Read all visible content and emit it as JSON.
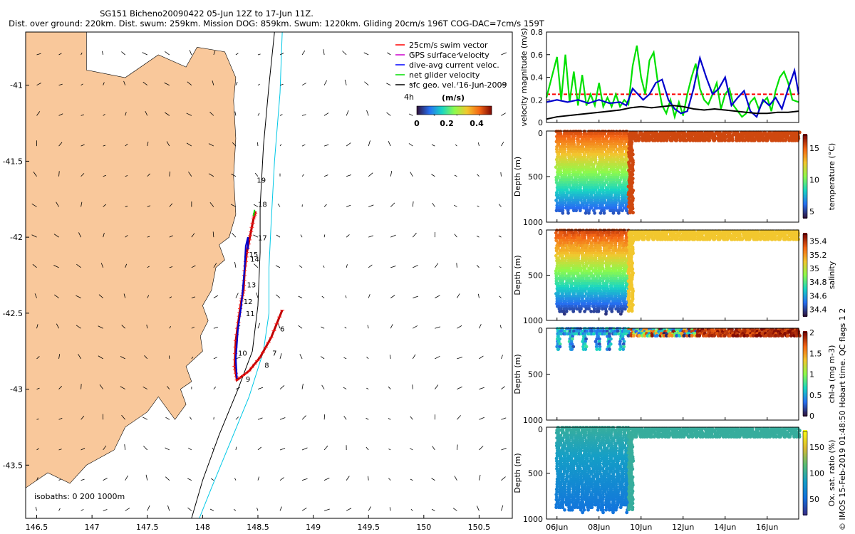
{
  "header": {
    "title": "SG151 Bicheno20090422 05-Jun 12Z to 17-Jun 11Z.",
    "subtitle": "Dist. over ground: 220km. Dist. swum: 259km. Mission DOG: 859km. Swum: 1220km. Gliding 20cm/s 196T COG-DAC=7cm/s 159T"
  },
  "credit": "© IMOS 15-Feb-2019 01:48:50 Hobart time. QC flags 1  2",
  "colors": {
    "land": "#f9c89b",
    "isobath_200": "#000000",
    "isobath_1000": "#00c8e6",
    "track": "#c00000",
    "dac": "#0000cc",
    "net": "#00e000",
    "gps": "#cc00cc"
  },
  "chart_data": [
    {
      "type": "map",
      "xlim": [
        146.4,
        150.8
      ],
      "ylim": [
        -43.85,
        -40.65
      ],
      "x_ticks": [
        "146.5",
        "147",
        "147.5",
        "148",
        "148.5",
        "149",
        "149.5",
        "150",
        "150.5"
      ],
      "y_ticks": [
        "-41",
        "-41.5",
        "-42",
        "-42.5",
        "-43",
        "-43.5"
      ],
      "isobaths_label": "isobaths: 0   200   1000m",
      "legend": {
        "placement": "top-right",
        "entries": [
          "25cm/s swim vector",
          "GPS surface velocity",
          "dive-avg current veloc.",
          "net glider velocity",
          "sfc geo. vel. 16-Jun-2009"
        ],
        "colors": [
          "#ff0000",
          "#cc00cc",
          "#0000ff",
          "#00dd00",
          "#000000"
        ]
      },
      "scale_text": "4h",
      "colorbar": {
        "title": "(m/s)",
        "ticks": [
          "0",
          "0.2",
          "0.4"
        ],
        "range": [
          0,
          0.5
        ]
      },
      "day_labels": [
        {
          "label": "6",
          "lon": 148.7,
          "lat": -42.62
        },
        {
          "label": "7",
          "lon": 148.63,
          "lat": -42.78
        },
        {
          "label": "8",
          "lon": 148.56,
          "lat": -42.86
        },
        {
          "label": "9",
          "lon": 148.39,
          "lat": -42.95
        },
        {
          "label": "10",
          "lon": 148.32,
          "lat": -42.78
        },
        {
          "label": "11",
          "lon": 148.39,
          "lat": -42.52
        },
        {
          "label": "12",
          "lon": 148.37,
          "lat": -42.44
        },
        {
          "label": "13",
          "lon": 148.4,
          "lat": -42.33
        },
        {
          "label": "14",
          "lon": 148.43,
          "lat": -42.16
        },
        {
          "label": "15",
          "lon": 148.42,
          "lat": -42.13
        },
        {
          "label": "17",
          "lon": 148.5,
          "lat": -42.02
        },
        {
          "label": "18",
          "lon": 148.5,
          "lat": -41.8
        },
        {
          "label": "19",
          "lon": 148.49,
          "lat": -41.64
        }
      ],
      "track": [
        [
          148.72,
          -42.48
        ],
        [
          148.62,
          -42.66
        ],
        [
          148.52,
          -42.79
        ],
        [
          148.42,
          -42.88
        ],
        [
          148.31,
          -42.94
        ],
        [
          148.29,
          -42.85
        ],
        [
          148.3,
          -42.68
        ],
        [
          148.33,
          -42.52
        ],
        [
          148.35,
          -42.42
        ],
        [
          148.37,
          -42.35
        ],
        [
          148.38,
          -42.22
        ],
        [
          148.4,
          -42.1
        ],
        [
          148.43,
          -41.99
        ],
        [
          148.46,
          -41.88
        ],
        [
          148.48,
          -41.83
        ]
      ],
      "dac_track": [
        [
          148.31,
          -42.93
        ],
        [
          148.3,
          -42.8
        ],
        [
          148.32,
          -42.6
        ],
        [
          148.35,
          -42.45
        ],
        [
          148.36,
          -42.37
        ],
        [
          148.38,
          -42.2
        ],
        [
          148.39,
          -42.06
        ],
        [
          148.41,
          -42.0
        ],
        [
          148.41,
          -42.08
        ]
      ]
    },
    {
      "type": "line",
      "ylabel": "velocity magnitude (m/s)",
      "ylim": [
        0,
        0.8
      ],
      "y_ticks": [
        "0",
        "0.2",
        "0.4",
        "0.6",
        "0.8"
      ],
      "x_days": [
        5.5,
        17.5
      ],
      "series": [
        {
          "color": "#00e000",
          "x": [
            5.5,
            6.0,
            6.2,
            6.4,
            6.6,
            6.8,
            7.0,
            7.2,
            7.4,
            7.6,
            7.8,
            8.0,
            8.2,
            8.4,
            8.6,
            8.8,
            9.0,
            9.2,
            9.4,
            9.6,
            9.8,
            10.0,
            10.2,
            10.4,
            10.6,
            10.8,
            11.0,
            11.2,
            11.4,
            11.6,
            11.8,
            12.0,
            12.2,
            12.4,
            12.6,
            12.8,
            13.0,
            13.2,
            13.4,
            13.6,
            13.8,
            14.0,
            14.2,
            14.4,
            14.6,
            14.8,
            15.0,
            15.2,
            15.4,
            15.6,
            15.8,
            16.0,
            16.2,
            16.4,
            16.6,
            16.8,
            17.0,
            17.2,
            17.5
          ],
          "y": [
            0.22,
            0.58,
            0.2,
            0.6,
            0.18,
            0.45,
            0.15,
            0.42,
            0.15,
            0.25,
            0.15,
            0.35,
            0.14,
            0.22,
            0.14,
            0.25,
            0.14,
            0.2,
            0.16,
            0.5,
            0.68,
            0.4,
            0.25,
            0.55,
            0.62,
            0.35,
            0.15,
            0.08,
            0.2,
            0.05,
            0.18,
            0.06,
            0.25,
            0.4,
            0.52,
            0.3,
            0.2,
            0.16,
            0.25,
            0.35,
            0.12,
            0.25,
            0.3,
            0.15,
            0.1,
            0.05,
            0.08,
            0.18,
            0.22,
            0.12,
            0.18,
            0.22,
            0.1,
            0.28,
            0.4,
            0.45,
            0.35,
            0.2,
            0.18
          ]
        },
        {
          "color": "#0000cc",
          "x": [
            5.5,
            6.0,
            6.5,
            7.0,
            7.5,
            8.0,
            8.5,
            9.0,
            9.3,
            9.6,
            9.9,
            10.1,
            10.4,
            10.7,
            11.0,
            11.3,
            11.6,
            11.9,
            12.2,
            12.5,
            12.8,
            13.1,
            13.4,
            13.7,
            14.0,
            14.3,
            14.6,
            14.9,
            15.2,
            15.5,
            15.8,
            16.1,
            16.4,
            16.7,
            17.0,
            17.3,
            17.5
          ],
          "y": [
            0.18,
            0.2,
            0.18,
            0.2,
            0.17,
            0.2,
            0.17,
            0.18,
            0.15,
            0.3,
            0.24,
            0.2,
            0.25,
            0.35,
            0.38,
            0.2,
            0.12,
            0.08,
            0.1,
            0.3,
            0.57,
            0.4,
            0.25,
            0.3,
            0.4,
            0.15,
            0.22,
            0.28,
            0.1,
            0.05,
            0.2,
            0.15,
            0.22,
            0.12,
            0.3,
            0.46,
            0.25
          ]
        },
        {
          "color": "#000000",
          "x": [
            5.5,
            6.0,
            7.0,
            8.0,
            9.0,
            9.5,
            10.0,
            10.5,
            11.0,
            11.5,
            12.0,
            12.5,
            13.0,
            13.5,
            14.0,
            14.5,
            15.0,
            15.5,
            16.0,
            16.5,
            17.0,
            17.5
          ],
          "y": [
            0.03,
            0.05,
            0.07,
            0.09,
            0.11,
            0.13,
            0.14,
            0.13,
            0.14,
            0.15,
            0.14,
            0.12,
            0.11,
            0.12,
            0.11,
            0.1,
            0.09,
            0.08,
            0.08,
            0.09,
            0.09,
            0.1
          ]
        }
      ],
      "reference_line": {
        "value": 0.25,
        "color": "#ff0000"
      }
    },
    {
      "type": "scatter",
      "variable": "temperature",
      "label": "temperature (°C)",
      "clim": [
        4,
        17
      ],
      "cticks": [
        {
          "v": 5,
          "t": "5"
        },
        {
          "v": 10,
          "t": "10"
        },
        {
          "v": 15,
          "t": "15"
        }
      ],
      "ylabel": "Depth (m)",
      "ylim": [
        1000,
        0
      ],
      "y_ticks": [
        "0",
        "500",
        "1000"
      ],
      "profile_end_day": 9.4
    },
    {
      "type": "scatter",
      "variable": "salinity",
      "label": "salinity",
      "clim": [
        34.3,
        35.5
      ],
      "cticks": [
        {
          "v": 34.4,
          "t": "34.4"
        },
        {
          "v": 34.6,
          "t": "34.6"
        },
        {
          "v": 34.8,
          "t": "34.8"
        },
        {
          "v": 35.0,
          "t": "35"
        },
        {
          "v": 35.2,
          "t": "35.2"
        },
        {
          "v": 35.4,
          "t": "35.4"
        }
      ],
      "ylabel": "Depth (m)",
      "ylim": [
        1000,
        0
      ],
      "y_ticks": [
        "0",
        "500",
        "1000"
      ],
      "profile_end_day": 9.4
    },
    {
      "type": "scatter",
      "variable": "chl",
      "label": "chl-a (mg m-3)",
      "clim": [
        0,
        2
      ],
      "cticks": [
        {
          "v": 0,
          "t": "0"
        },
        {
          "v": 0.5,
          "t": "0.5"
        },
        {
          "v": 1,
          "t": "1"
        },
        {
          "v": 1.5,
          "t": "1.5"
        },
        {
          "v": 2,
          "t": "2"
        }
      ],
      "ylabel": "Depth (m)",
      "ylim": [
        1000,
        0
      ],
      "y_ticks": [
        "0",
        "500",
        "1000"
      ]
    },
    {
      "type": "scatter",
      "variable": "oxygen",
      "label": "Ox. sat. ratio (%)",
      "clim": [
        20,
        180
      ],
      "cticks": [
        {
          "v": 50,
          "t": "50"
        },
        {
          "v": 100,
          "t": "100"
        },
        {
          "v": 150,
          "t": "150"
        }
      ],
      "ylabel": "Depth (m)",
      "ylim": [
        1000,
        0
      ],
      "y_ticks": [
        "0",
        "500",
        "1000"
      ],
      "x_ticks": [
        "06Jun",
        "08Jun",
        "10Jun",
        "12Jun",
        "14Jun",
        "16Jun"
      ],
      "profile_end_day": 9.4
    }
  ]
}
